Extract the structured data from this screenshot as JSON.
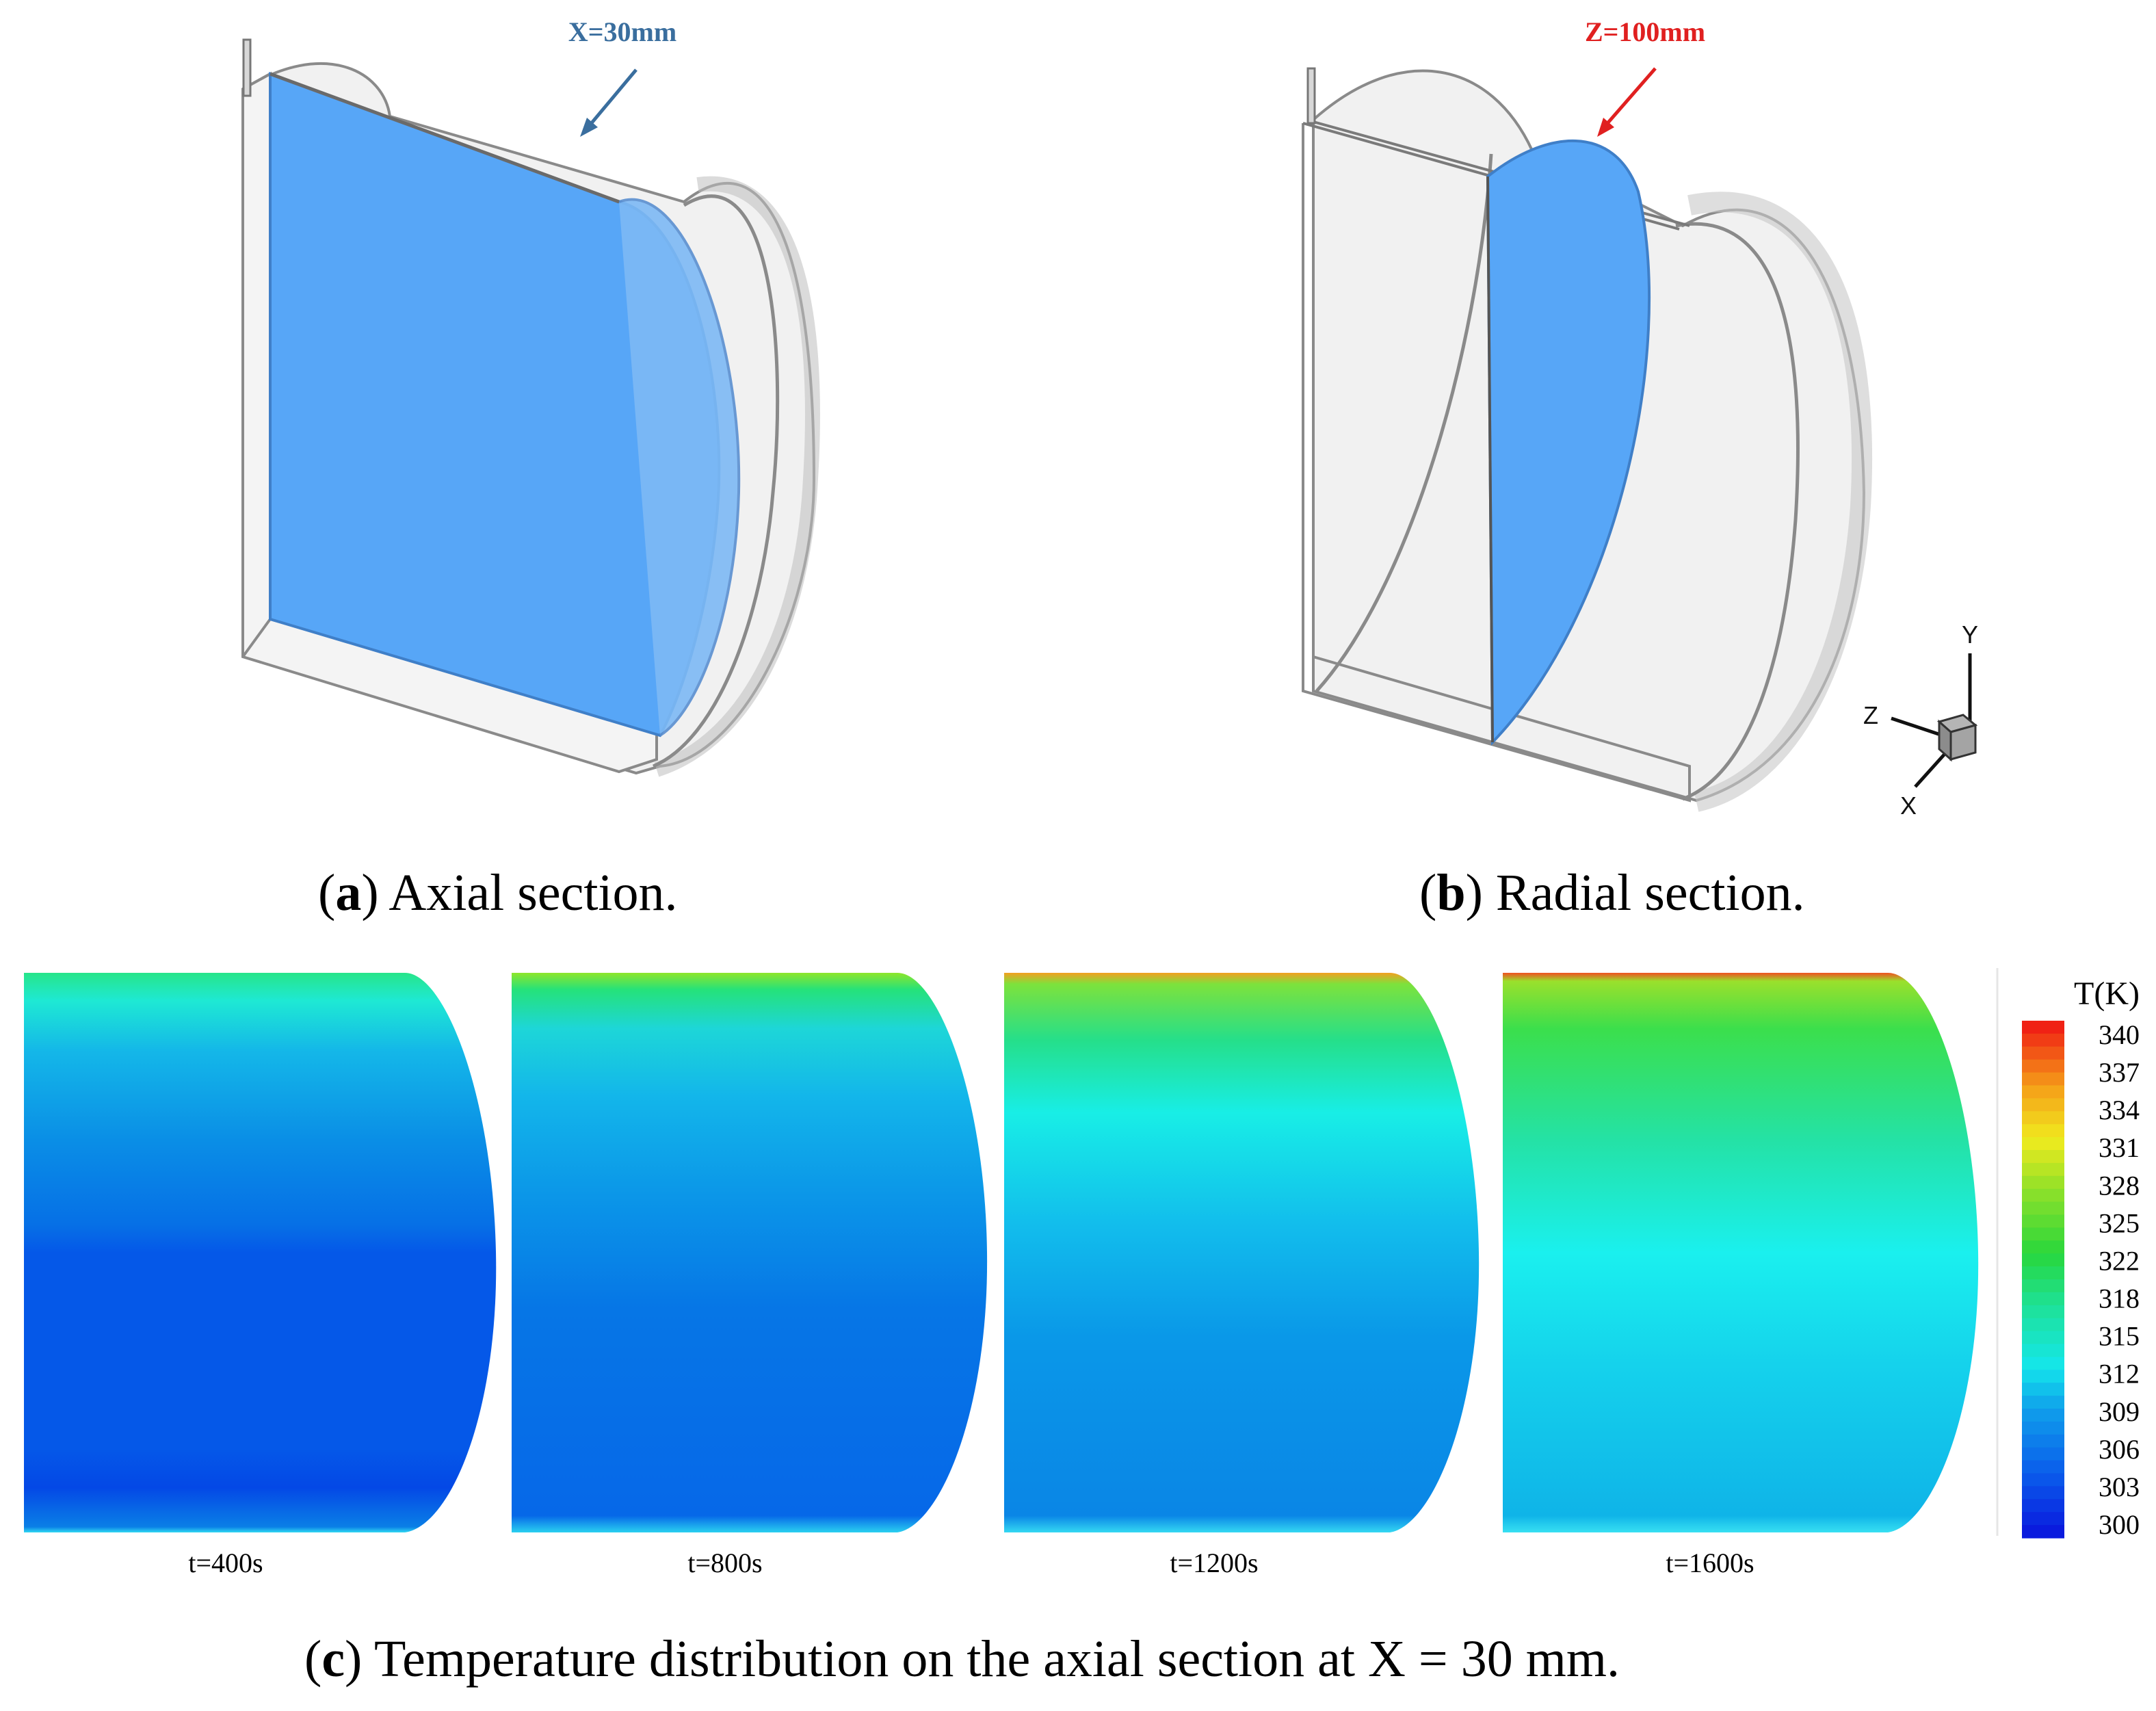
{
  "panel_a": {
    "annotation": "X=30mm",
    "caption_letter": "a",
    "caption_text": " Axial section."
  },
  "panel_b": {
    "annotation": "Z=100mm",
    "caption_letter": "b",
    "caption_text": " Radial section.",
    "axes": {
      "y": "Y",
      "z": "Z",
      "x": "X"
    }
  },
  "panel_c": {
    "caption_letter": "c",
    "caption_text": " Temperature distribution on the axial section at X = 30 mm.",
    "snapshots": [
      {
        "label": "t=400s"
      },
      {
        "label": "t=800s"
      },
      {
        "label": "t=1200s"
      },
      {
        "label": "t=1600s"
      }
    ],
    "colorbar": {
      "title": "T(K)",
      "ticks": [
        "340",
        "337",
        "334",
        "331",
        "328",
        "325",
        "322",
        "318",
        "315",
        "312",
        "309",
        "306",
        "303",
        "300"
      ],
      "min": 300,
      "max": 340
    }
  },
  "colors": {
    "section_fill": "#57a6f7",
    "annotation_a": "#3a6e9e",
    "annotation_b": "#e02020"
  }
}
